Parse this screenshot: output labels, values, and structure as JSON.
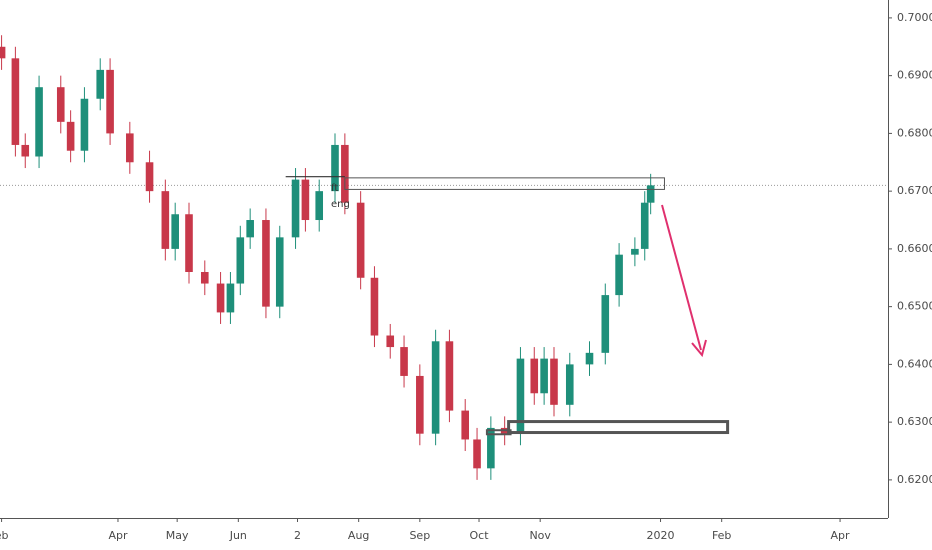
{
  "chart_data": {
    "type": "candlestick",
    "x": [
      32,
      39,
      44,
      51,
      62,
      67,
      74,
      82,
      87,
      97,
      107,
      115,
      120,
      127,
      135,
      143,
      148,
      153,
      158,
      166,
      173,
      181,
      186,
      193,
      201,
      206,
      214,
      221,
      229,
      236,
      244,
      252,
      259,
      267,
      273,
      280,
      287,
      295,
      302,
      307,
      312,
      320,
      330,
      338,
      345,
      353,
      358,
      361
    ],
    "open": [
      0.695,
      0.693,
      0.678,
      0.676,
      0.688,
      0.682,
      0.677,
      0.686,
      0.691,
      0.68,
      0.675,
      0.67,
      0.66,
      0.666,
      0.656,
      0.654,
      0.649,
      0.654,
      0.662,
      0.665,
      0.65,
      0.662,
      0.672,
      0.665,
      0.67,
      0.678,
      0.668,
      0.655,
      0.645,
      0.643,
      0.638,
      0.628,
      0.644,
      0.632,
      0.627,
      0.622,
      0.629,
      0.628,
      0.641,
      0.635,
      0.641,
      0.633,
      0.64,
      0.642,
      0.652,
      0.659,
      0.66,
      0.668
    ],
    "high": [
      0.697,
      0.695,
      0.68,
      0.69,
      0.69,
      0.684,
      0.688,
      0.693,
      0.693,
      0.682,
      0.677,
      0.672,
      0.668,
      0.668,
      0.658,
      0.656,
      0.656,
      0.664,
      0.667,
      0.667,
      0.664,
      0.674,
      0.674,
      0.672,
      0.68,
      0.68,
      0.67,
      0.657,
      0.647,
      0.645,
      0.64,
      0.646,
      0.646,
      0.634,
      0.629,
      0.631,
      0.631,
      0.643,
      0.643,
      0.643,
      0.643,
      0.642,
      0.644,
      0.654,
      0.661,
      0.662,
      0.67,
      0.673
    ],
    "low": [
      0.691,
      0.676,
      0.674,
      0.674,
      0.68,
      0.675,
      0.675,
      0.684,
      0.678,
      0.673,
      0.668,
      0.658,
      0.658,
      0.654,
      0.652,
      0.647,
      0.647,
      0.652,
      0.66,
      0.648,
      0.648,
      0.66,
      0.663,
      0.663,
      0.668,
      0.666,
      0.653,
      0.643,
      0.641,
      0.636,
      0.626,
      0.626,
      0.63,
      0.625,
      0.62,
      0.62,
      0.626,
      0.626,
      0.633,
      0.633,
      0.631,
      0.631,
      0.638,
      0.64,
      0.65,
      0.657,
      0.658,
      0.666
    ],
    "close": [
      0.693,
      0.678,
      0.676,
      0.688,
      0.682,
      0.677,
      0.686,
      0.691,
      0.68,
      0.675,
      0.67,
      0.66,
      0.666,
      0.656,
      0.654,
      0.649,
      0.654,
      0.662,
      0.665,
      0.65,
      0.662,
      0.672,
      0.665,
      0.67,
      0.678,
      0.668,
      0.655,
      0.645,
      0.643,
      0.638,
      0.628,
      0.644,
      0.632,
      0.627,
      0.622,
      0.629,
      0.628,
      0.641,
      0.635,
      0.641,
      0.633,
      0.64,
      0.642,
      0.652,
      0.659,
      0.66,
      0.668,
      0.671
    ],
    "up_color": "#1e8f7a",
    "down_color": "#c8384a",
    "xlim": [
      31.2,
      481.3
    ],
    "ylim": [
      0.6134,
      0.7031
    ],
    "xticks": [
      {
        "value": 32,
        "label": "eb"
      },
      {
        "value": 91,
        "label": "Apr"
      },
      {
        "value": 121,
        "label": "May"
      },
      {
        "value": 152,
        "label": "Jun"
      },
      {
        "value": 182,
        "label": "2"
      },
      {
        "value": 213,
        "label": "Aug"
      },
      {
        "value": 244,
        "label": "Sep"
      },
      {
        "value": 274,
        "label": "Oct"
      },
      {
        "value": 305,
        "label": "Nov"
      },
      {
        "value": 366,
        "label": "2020"
      },
      {
        "value": 397,
        "label": "Feb"
      },
      {
        "value": 457,
        "label": "Apr"
      }
    ],
    "yticks": [
      {
        "value": 0.62,
        "label": "0.62000"
      },
      {
        "value": 0.63,
        "label": "0.63000"
      },
      {
        "value": 0.64,
        "label": "0.64000"
      },
      {
        "value": 0.65,
        "label": "0.65000"
      },
      {
        "value": 0.66,
        "label": "0.66000"
      },
      {
        "value": 0.67,
        "label": "0.67000"
      },
      {
        "value": 0.68,
        "label": "0.68000"
      },
      {
        "value": 0.69,
        "label": "0.69000"
      },
      {
        "value": 0.7,
        "label": "0.70000"
      }
    ],
    "levels": [
      {
        "x": [
          176,
          206
        ],
        "y": 0.6725
      }
    ],
    "zones": [
      {
        "x": [
          206,
          368
        ],
        "y": [
          0.6703,
          0.6723
        ],
        "width": 1
      },
      {
        "x": [
          278,
          290
        ],
        "y": [
          0.6279,
          0.6286
        ],
        "width": 2
      },
      {
        "x": [
          289,
          400
        ],
        "y": [
          0.6282,
          0.6301
        ],
        "width": 3
      }
    ],
    "annotations": [
      "ft",
      "eng"
    ]
  }
}
